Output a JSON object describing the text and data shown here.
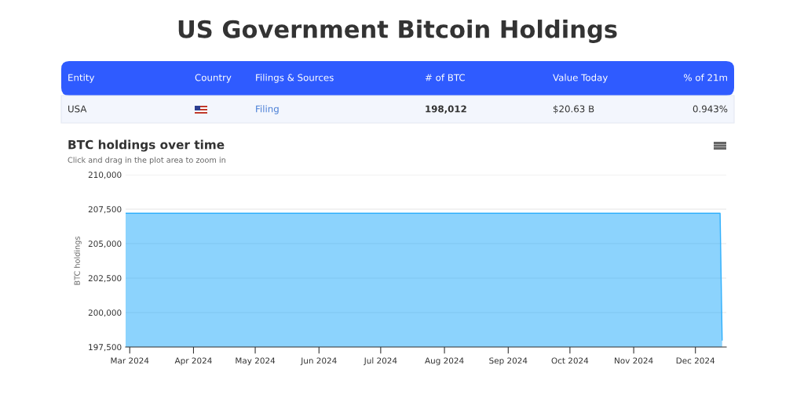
{
  "chart_data": [
    {
      "type": "other",
      "title": "US Government Bitcoin Holdings",
      "categories": [
        "Entity",
        "Country",
        "Filings & Sources",
        "# of BTC",
        "Value Today",
        "% of 21m"
      ],
      "annotations": [
        "USA",
        null,
        "Filing",
        "198,012",
        "$20.63 B",
        "0.943%"
      ]
    },
    {
      "type": "area",
      "title": "BTC holdings over time",
      "subtitle": "Click and drag in the plot area to zoom in",
      "ylabel": "BTC holdings",
      "x": [
        "2024-02-28",
        "2024-12-13",
        "2024-12-14"
      ],
      "series": [
        {
          "color": "#2eaffc",
          "values": [
            207200,
            207200,
            198012
          ]
        }
      ],
      "xlim": [
        "2024-02-28",
        "2024-12-16"
      ],
      "xticks": [
        {
          "value": "2024-03-01",
          "label": "Mar 2024"
        },
        {
          "value": "2024-04-01",
          "label": "Apr 2024"
        },
        {
          "value": "2024-05-01",
          "label": "May 2024"
        },
        {
          "value": "2024-06-01",
          "label": "Jun 2024"
        },
        {
          "value": "2024-07-01",
          "label": "Jul 2024"
        },
        {
          "value": "2024-08-01",
          "label": "Aug 2024"
        },
        {
          "value": "2024-09-01",
          "label": "Sep 2024"
        },
        {
          "value": "2024-10-01",
          "label": "Oct 2024"
        },
        {
          "value": "2024-11-01",
          "label": "Nov 2024"
        },
        {
          "value": "2024-12-01",
          "label": "Dec 2024"
        }
      ],
      "ylim": [
        197500,
        210000
      ],
      "yticks": [
        {
          "value": 197500,
          "label": "197,500"
        },
        {
          "value": 200000,
          "label": "200,000"
        },
        {
          "value": 202500,
          "label": "202,500"
        },
        {
          "value": 205000,
          "label": "205,000"
        },
        {
          "value": 207500,
          "label": "207,500"
        },
        {
          "value": 210000,
          "label": "210,000"
        }
      ],
      "grid": "y"
    }
  ]
}
